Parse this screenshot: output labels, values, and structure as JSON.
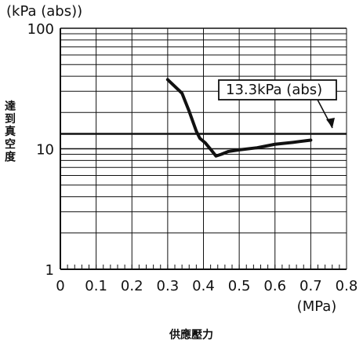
{
  "chart_data": {
    "type": "line",
    "title": "",
    "xlabel": "供應壓力",
    "ylabel": "達到真空度",
    "x_unit": "(MPa)",
    "y_unit": "(kPa (abs))",
    "x_scale": "linear",
    "y_scale": "log",
    "xlim": [
      0,
      0.8
    ],
    "ylim": [
      1,
      100
    ],
    "x_ticks": [
      "0",
      "0.1",
      "0.2",
      "0.3",
      "0.4",
      "0.5",
      "0.6",
      "0.7",
      "0.8"
    ],
    "y_ticks": [
      "1",
      "10",
      "100"
    ],
    "grid": true,
    "series": [
      {
        "values": [
          [
            0.3,
            37.5
          ],
          [
            0.34,
            28.9
          ],
          [
            0.36,
            20.5
          ],
          [
            0.38,
            14.0
          ],
          [
            0.39,
            12.2
          ],
          [
            0.405,
            11.2
          ],
          [
            0.42,
            9.9
          ],
          [
            0.435,
            8.7
          ],
          [
            0.45,
            9.0
          ],
          [
            0.47,
            9.5
          ],
          [
            0.5,
            9.8
          ],
          [
            0.55,
            10.2
          ],
          [
            0.6,
            10.9
          ],
          [
            0.65,
            11.3
          ],
          [
            0.7,
            11.8
          ]
        ],
        "color": "#111111"
      }
    ],
    "reference_line": {
      "y": 13.3,
      "label": "13.3kPa (abs)"
    }
  }
}
